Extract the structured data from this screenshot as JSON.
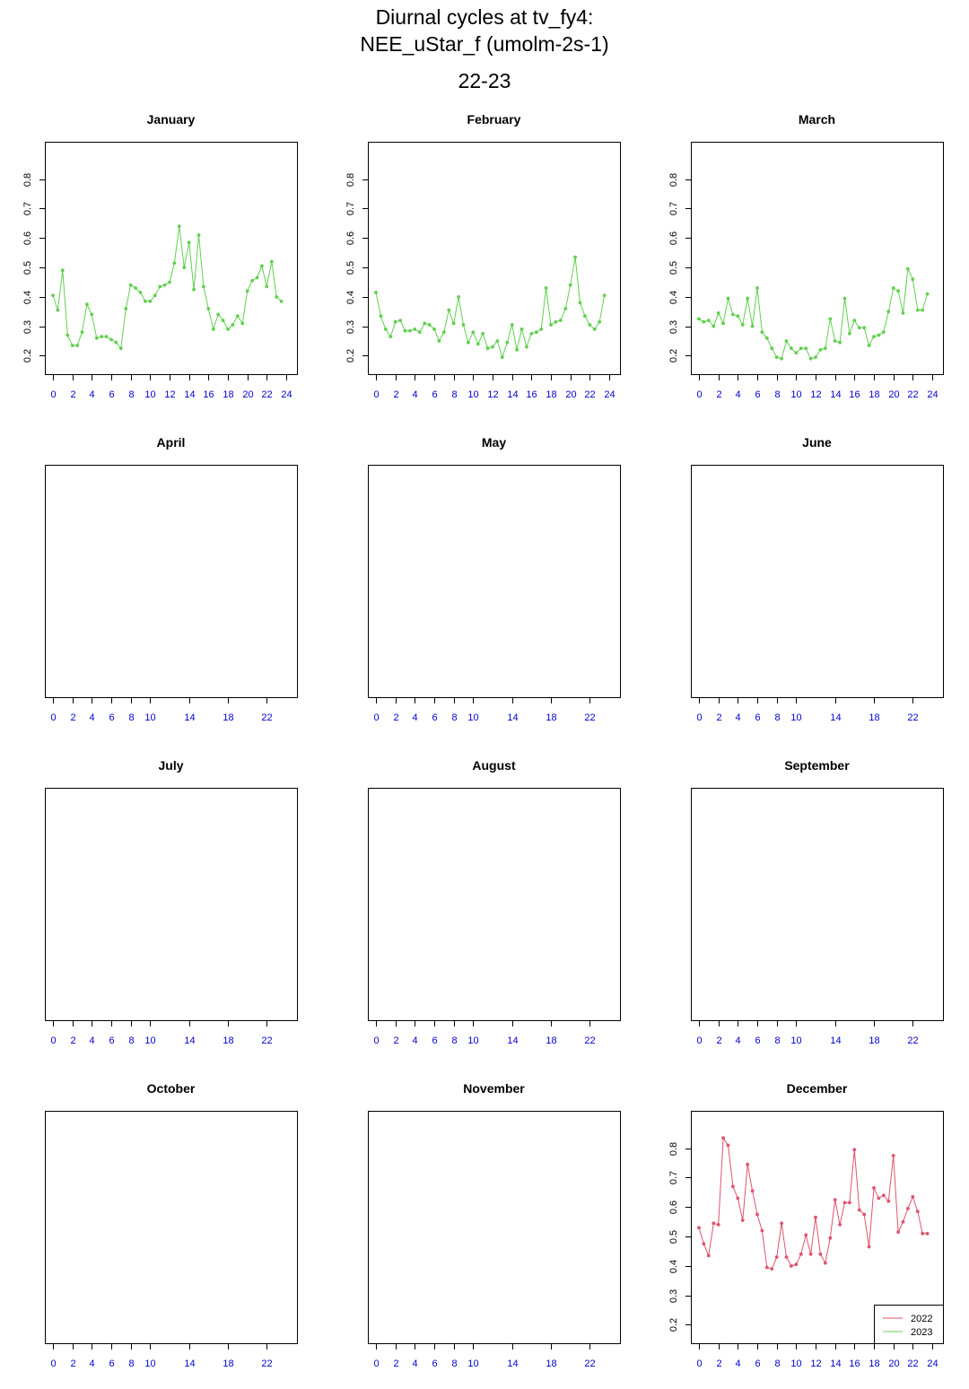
{
  "title": {
    "line1": "Diurnal cycles at tv_fy4:",
    "line2": "NEE_uStar_f (umolm-2s-1)",
    "line3": "22-23"
  },
  "colors": {
    "series_2022": "#df536b",
    "series_2023": "#61d04f",
    "tick_labels_x": "#0000cd",
    "frame": "#000000"
  },
  "legend": {
    "placement": "bottom-right (December panel)",
    "entries": [
      {
        "label": "2022",
        "color": "#df536b"
      },
      {
        "label": "2023",
        "color": "#61d04f"
      }
    ]
  },
  "chart_data": [
    {
      "type": "line",
      "title": "January",
      "xlim": [
        0,
        24
      ],
      "ylim": [
        0.18,
        0.86
      ],
      "x_ticks": [
        0,
        2,
        4,
        6,
        8,
        10,
        12,
        14,
        16,
        18,
        20,
        22,
        24
      ],
      "y_ticks": [
        0.2,
        0.3,
        0.4,
        0.5,
        0.6,
        0.7,
        0.8
      ],
      "series": [
        {
          "name": "2023",
          "x": [
            0,
            0.5,
            1,
            1.5,
            2,
            2.5,
            3,
            3.5,
            4,
            4.5,
            5,
            5.5,
            6,
            6.5,
            7,
            7.5,
            8,
            8.5,
            9,
            9.5,
            10,
            10.5,
            11,
            11.5,
            12,
            12.5,
            13,
            13.5,
            14,
            14.5,
            15,
            15.5,
            16,
            16.5,
            17,
            17.5,
            18,
            18.5,
            19,
            19.5,
            20,
            20.5,
            21,
            21.5,
            22,
            22.5,
            23,
            23.5
          ],
          "y": [
            0.405,
            0.355,
            0.49,
            0.27,
            0.235,
            0.235,
            0.28,
            0.375,
            0.34,
            0.26,
            0.265,
            0.265,
            0.255,
            0.245,
            0.225,
            0.36,
            0.44,
            0.43,
            0.415,
            0.385,
            0.385,
            0.405,
            0.435,
            0.44,
            0.45,
            0.515,
            0.64,
            0.5,
            0.585,
            0.425,
            0.61,
            0.435,
            0.36,
            0.29,
            0.34,
            0.32,
            0.29,
            0.305,
            0.335,
            0.31,
            0.42,
            0.455,
            0.465,
            0.505,
            0.435,
            0.52,
            0.4,
            0.385
          ]
        }
      ]
    },
    {
      "type": "line",
      "title": "February",
      "xlim": [
        0,
        24
      ],
      "ylim": [
        0.18,
        0.86
      ],
      "x_ticks": [
        0,
        2,
        4,
        6,
        8,
        10,
        12,
        14,
        16,
        18,
        20,
        22,
        24
      ],
      "y_ticks": [
        0.2,
        0.3,
        0.4,
        0.5,
        0.6,
        0.7,
        0.8
      ],
      "series": [
        {
          "name": "2023",
          "x": [
            0,
            0.5,
            1,
            1.5,
            2,
            2.5,
            3,
            3.5,
            4,
            4.5,
            5,
            5.5,
            6,
            6.5,
            7,
            7.5,
            8,
            8.5,
            9,
            9.5,
            10,
            10.5,
            11,
            11.5,
            12,
            12.5,
            13,
            13.5,
            14,
            14.5,
            15,
            15.5,
            16,
            16.5,
            17,
            17.5,
            18,
            18.5,
            19,
            19.5,
            20,
            20.5,
            21,
            21.5,
            22,
            22.5,
            23,
            23.5
          ],
          "y": [
            0.415,
            0.335,
            0.29,
            0.265,
            0.315,
            0.32,
            0.285,
            0.285,
            0.29,
            0.28,
            0.31,
            0.305,
            0.29,
            0.25,
            0.28,
            0.355,
            0.31,
            0.4,
            0.305,
            0.245,
            0.28,
            0.24,
            0.275,
            0.225,
            0.23,
            0.25,
            0.195,
            0.245,
            0.305,
            0.22,
            0.29,
            0.23,
            0.275,
            0.28,
            0.29,
            0.43,
            0.305,
            0.315,
            0.32,
            0.36,
            0.44,
            0.535,
            0.38,
            0.335,
            0.305,
            0.29,
            0.315,
            0.405
          ]
        }
      ]
    },
    {
      "type": "line",
      "title": "March",
      "xlim": [
        0,
        24
      ],
      "ylim": [
        0.18,
        0.86
      ],
      "x_ticks": [
        0,
        2,
        4,
        6,
        8,
        10,
        12,
        14,
        16,
        18,
        20,
        22,
        24
      ],
      "y_ticks": [
        0.2,
        0.3,
        0.4,
        0.5,
        0.6,
        0.7,
        0.8
      ],
      "series": [
        {
          "name": "2023",
          "x": [
            0,
            0.5,
            1,
            1.5,
            2,
            2.5,
            3,
            3.5,
            4,
            4.5,
            5,
            5.5,
            6,
            6.5,
            7,
            7.5,
            8,
            8.5,
            9,
            9.5,
            10,
            10.5,
            11,
            11.5,
            12,
            12.5,
            13,
            13.5,
            14,
            14.5,
            15,
            15.5,
            16,
            16.5,
            17,
            17.5,
            18,
            18.5,
            19,
            19.5,
            20,
            20.5,
            21,
            21.5,
            22,
            22.5,
            23,
            23.5
          ],
          "y": [
            0.325,
            0.315,
            0.32,
            0.3,
            0.345,
            0.31,
            0.395,
            0.34,
            0.335,
            0.305,
            0.395,
            0.3,
            0.43,
            0.28,
            0.26,
            0.225,
            0.195,
            0.19,
            0.25,
            0.225,
            0.21,
            0.225,
            0.225,
            0.19,
            0.195,
            0.22,
            0.225,
            0.325,
            0.25,
            0.245,
            0.395,
            0.275,
            0.32,
            0.295,
            0.295,
            0.235,
            0.265,
            0.27,
            0.28,
            0.35,
            0.43,
            0.42,
            0.345,
            0.495,
            0.46,
            0.355,
            0.355,
            0.41
          ]
        }
      ]
    },
    {
      "type": "line",
      "title": "April",
      "xlim": [
        0,
        24
      ],
      "x_ticks": [
        0,
        2,
        4,
        6,
        8,
        10,
        14,
        18,
        22
      ],
      "series": []
    },
    {
      "type": "line",
      "title": "May",
      "xlim": [
        0,
        24
      ],
      "x_ticks": [
        0,
        2,
        4,
        6,
        8,
        10,
        14,
        18,
        22
      ],
      "series": []
    },
    {
      "type": "line",
      "title": "June",
      "xlim": [
        0,
        24
      ],
      "x_ticks": [
        0,
        2,
        4,
        6,
        8,
        10,
        14,
        18,
        22
      ],
      "series": []
    },
    {
      "type": "line",
      "title": "July",
      "xlim": [
        0,
        24
      ],
      "x_ticks": [
        0,
        2,
        4,
        6,
        8,
        10,
        14,
        18,
        22
      ],
      "series": []
    },
    {
      "type": "line",
      "title": "August",
      "xlim": [
        0,
        24
      ],
      "x_ticks": [
        0,
        2,
        4,
        6,
        8,
        10,
        14,
        18,
        22
      ],
      "series": []
    },
    {
      "type": "line",
      "title": "September",
      "xlim": [
        0,
        24
      ],
      "x_ticks": [
        0,
        2,
        4,
        6,
        8,
        10,
        14,
        18,
        22
      ],
      "series": []
    },
    {
      "type": "line",
      "title": "October",
      "xlim": [
        0,
        24
      ],
      "x_ticks": [
        0,
        2,
        4,
        6,
        8,
        10,
        14,
        18,
        22
      ],
      "series": []
    },
    {
      "type": "line",
      "title": "November",
      "xlim": [
        0,
        24
      ],
      "x_ticks": [
        0,
        2,
        4,
        6,
        8,
        10,
        14,
        18,
        22
      ],
      "series": []
    },
    {
      "type": "line",
      "title": "December",
      "xlim": [
        0,
        24
      ],
      "ylim": [
        0.18,
        0.86
      ],
      "x_ticks": [
        0,
        2,
        4,
        6,
        8,
        10,
        12,
        14,
        16,
        18,
        20,
        22,
        24
      ],
      "y_ticks": [
        0.2,
        0.3,
        0.4,
        0.5,
        0.6,
        0.7,
        0.8
      ],
      "series": [
        {
          "name": "2022",
          "x": [
            0,
            0.5,
            1,
            1.5,
            2,
            2.5,
            3,
            3.5,
            4,
            4.5,
            5,
            5.5,
            6,
            6.5,
            7,
            7.5,
            8,
            8.5,
            9,
            9.5,
            10,
            10.5,
            11,
            11.5,
            12,
            12.5,
            13,
            13.5,
            14,
            14.5,
            15,
            15.5,
            16,
            16.5,
            17,
            17.5,
            18,
            18.5,
            19,
            19.5,
            20,
            20.5,
            21,
            21.5,
            22,
            22.5,
            23,
            23.5
          ],
          "y": [
            0.53,
            0.475,
            0.435,
            0.545,
            0.54,
            0.835,
            0.81,
            0.67,
            0.63,
            0.555,
            0.745,
            0.655,
            0.575,
            0.52,
            0.395,
            0.39,
            0.43,
            0.545,
            0.43,
            0.4,
            0.405,
            0.44,
            0.505,
            0.44,
            0.565,
            0.44,
            0.41,
            0.495,
            0.625,
            0.54,
            0.615,
            0.615,
            0.795,
            0.59,
            0.575,
            0.465,
            0.665,
            0.63,
            0.64,
            0.62,
            0.775,
            0.515,
            0.55,
            0.595,
            0.635,
            0.585,
            0.51,
            0.51
          ]
        }
      ]
    }
  ]
}
